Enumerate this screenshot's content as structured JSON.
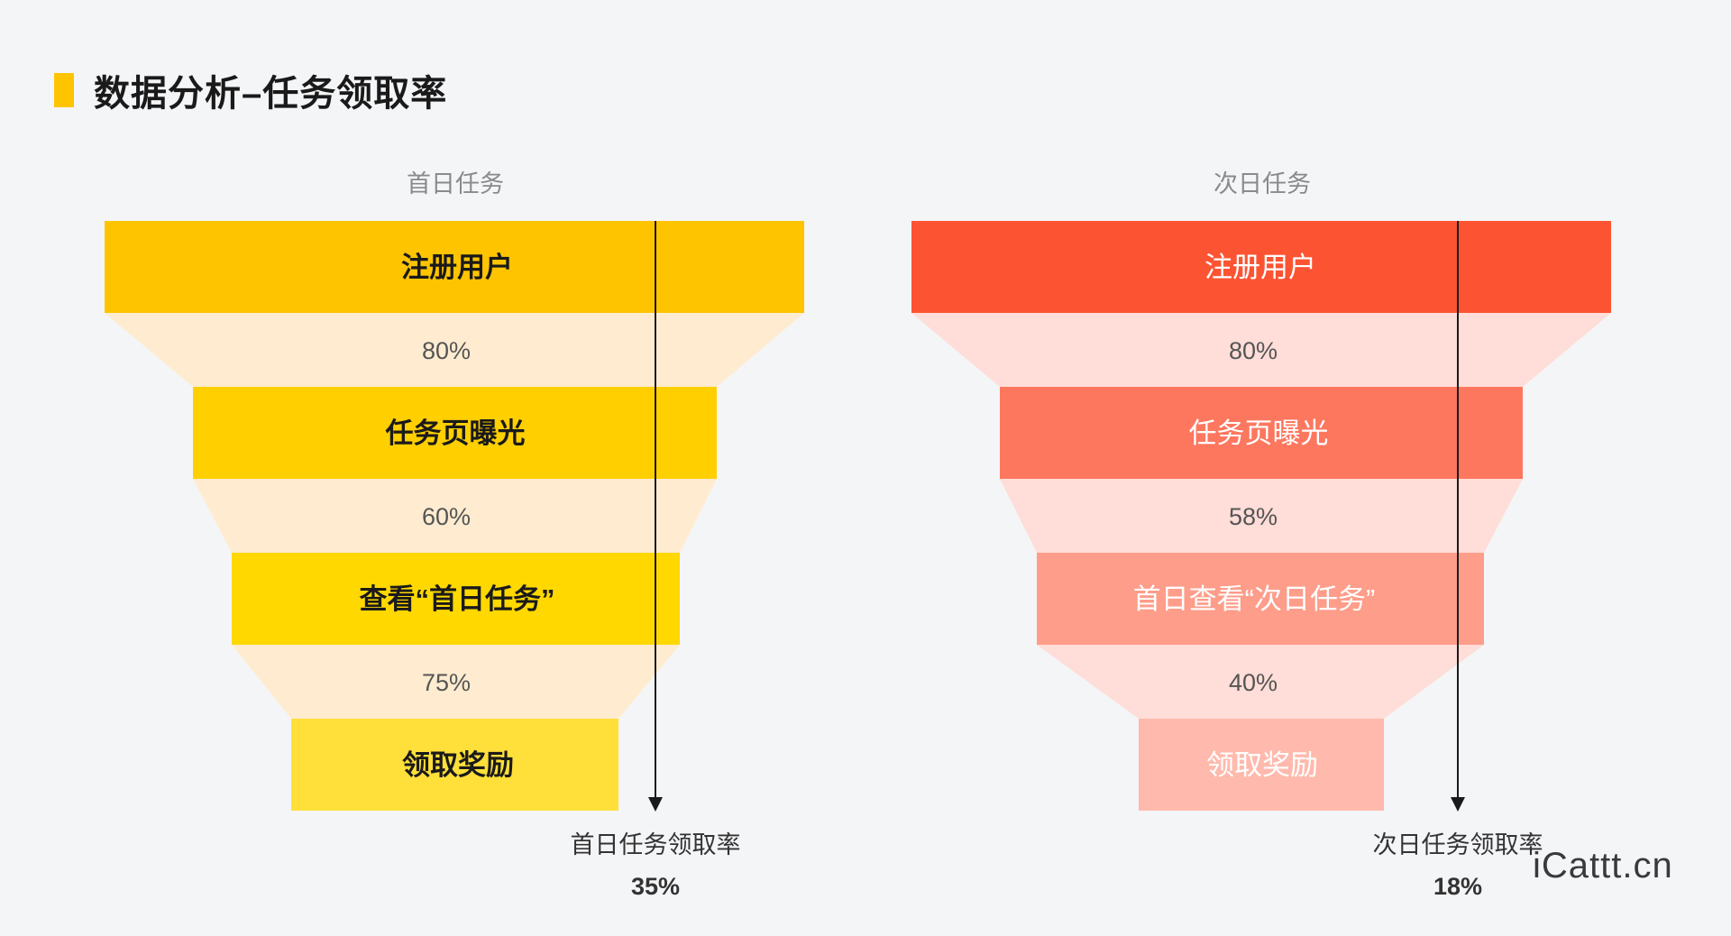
{
  "header": {
    "title": "数据分析–任务领取率"
  },
  "watermark": "iCattt.cn",
  "chart_data": [
    {
      "type": "funnel",
      "title": "首日任务",
      "stages": [
        "注册用户",
        "任务页曝光",
        "查看“首日任务”",
        "领取奖励"
      ],
      "conversion_labels": [
        "80%",
        "60%",
        "75%"
      ],
      "conversions": [
        80,
        60,
        75
      ],
      "overall_label": "首日任务领取率",
      "overall_value_label": "35%",
      "overall_value": 35,
      "colors": {
        "stages": [
          "#ffc400",
          "#ffcf00",
          "#ffd800",
          "#ffdf3a"
        ],
        "connector": "#ffecd0",
        "stage_text": "#1a1a1a",
        "stage_text_weight": "bold"
      }
    },
    {
      "type": "funnel",
      "title": "次日任务",
      "stages": [
        "注册用户",
        "任务页曝光",
        "首日查看“次日任务”",
        "领取奖励"
      ],
      "conversion_labels": [
        "80%",
        "58%",
        "40%"
      ],
      "conversions": [
        80,
        58,
        40
      ],
      "overall_label": "次日任务领取率",
      "overall_value_label": "18%",
      "overall_value": 18,
      "colors": {
        "stages": [
          "#fc5433",
          "#fd775f",
          "#fe9d8a",
          "#ffbaad"
        ],
        "connector": "#ffddd8",
        "stage_text": "#ffffff",
        "stage_text_weight": "normal"
      }
    }
  ]
}
